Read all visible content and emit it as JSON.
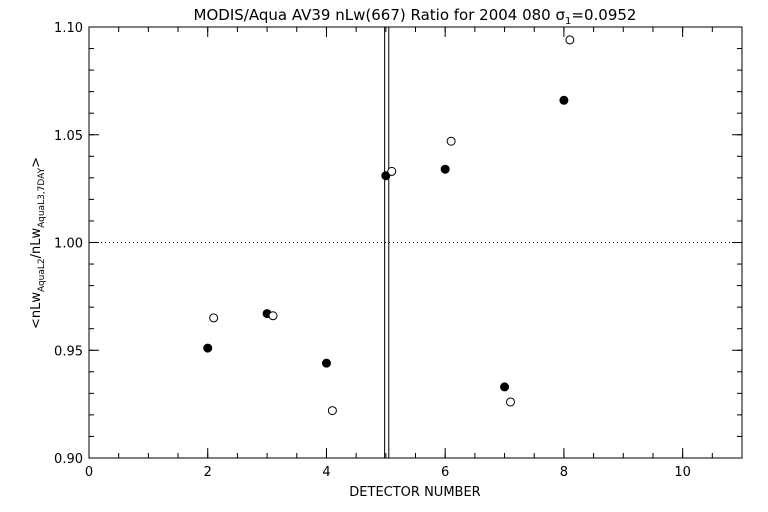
{
  "chart_data": {
    "type": "scatter",
    "title_main": "MODIS/Aqua AV39 nLw(667) Ratio for 2004 080 σ",
    "title_sub": "1",
    "title_tail": "=0.0952",
    "xlabel": "DETECTOR NUMBER",
    "ylabel": {
      "open": "<nLw",
      "sub1": "AquaL2",
      "mid": "/nLw",
      "sub2": "AquaL3,7DAY",
      "close": ">"
    },
    "xlim": [
      0,
      11
    ],
    "ylim": [
      0.9,
      1.1
    ],
    "x_ticks": [
      0,
      2,
      4,
      6,
      8,
      10
    ],
    "x_tick_labels": [
      "0",
      "2",
      "4",
      "6",
      "8",
      "10"
    ],
    "y_ticks": [
      0.9,
      0.95,
      1.0,
      1.05,
      1.1
    ],
    "y_tick_labels": [
      "0.90",
      "0.95",
      "1.00",
      "1.05",
      "1.10"
    ],
    "x_minor_step": 0.5,
    "y_minor_step": 0.01,
    "reference_line_y": 1.0,
    "vertical_lines_x": [
      4.98,
      5.05
    ],
    "grid": false,
    "series": [
      {
        "marker": "filled-circle",
        "x": [
          2.0,
          3.0,
          4.0,
          5.0,
          6.0,
          7.0,
          8.0
        ],
        "y": [
          0.951,
          0.967,
          0.944,
          1.031,
          1.034,
          0.933,
          1.066
        ]
      },
      {
        "marker": "open-circle",
        "x": [
          2.1,
          3.1,
          4.1,
          5.1,
          6.1,
          7.1,
          8.1
        ],
        "y": [
          0.965,
          0.966,
          0.922,
          1.033,
          1.047,
          0.926,
          1.094
        ]
      }
    ],
    "colors": {
      "foreground": "#000000",
      "background": "#ffffff"
    }
  }
}
